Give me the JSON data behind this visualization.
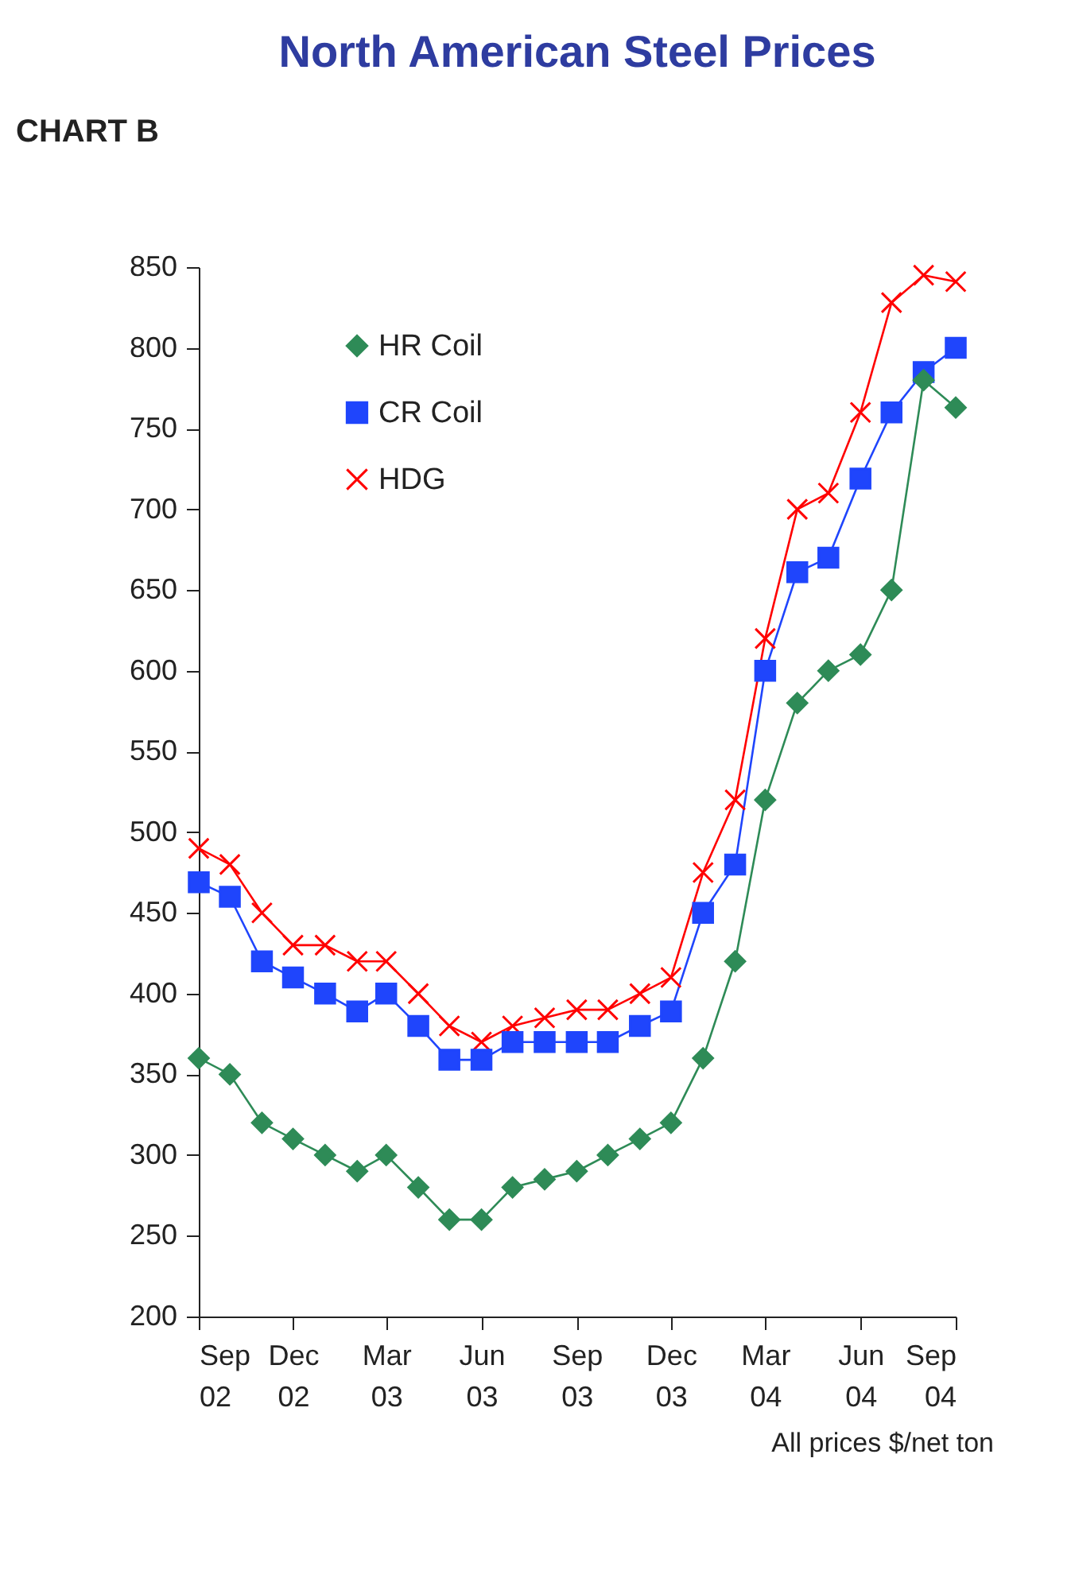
{
  "chart_data": {
    "type": "line",
    "title": "North American Steel Prices",
    "annotations": [
      "CHART B",
      "All prices $/net ton"
    ],
    "x": [
      "2002-09",
      "2002-10",
      "2002-11",
      "2002-12",
      "2003-01",
      "2003-02",
      "2003-03",
      "2003-04",
      "2003-05",
      "2003-06",
      "2003-07",
      "2003-08",
      "2003-09",
      "2003-10",
      "2003-11",
      "2003-12",
      "2004-01",
      "2004-02",
      "2004-03",
      "2004-04",
      "2004-05",
      "2004-06",
      "2004-07",
      "2004-08",
      "2004-09"
    ],
    "series": [
      {
        "name": "HR Coil",
        "color": "#2e8b57",
        "marker": "diamond",
        "values": [
          360,
          350,
          320,
          310,
          300,
          290,
          300,
          280,
          260,
          260,
          280,
          285,
          290,
          300,
          310,
          320,
          360,
          420,
          520,
          580,
          600,
          610,
          650,
          780,
          763
        ]
      },
      {
        "name": "CR Coil",
        "color": "#1f45fc",
        "marker": "square",
        "values": [
          469,
          460,
          420,
          410,
          400,
          389,
          400,
          380,
          359,
          359,
          370,
          370,
          370,
          370,
          380,
          389,
          450,
          480,
          600,
          661,
          670,
          719,
          760,
          785,
          800
        ]
      },
      {
        "name": "HDG",
        "color": "#ff0000",
        "marker": "cross",
        "values": [
          490,
          480,
          450,
          430,
          430,
          420,
          420,
          400,
          380,
          370,
          380,
          385,
          390,
          390,
          400,
          410,
          475,
          520,
          620,
          700,
          710,
          760,
          828,
          845,
          841
        ]
      }
    ],
    "xlim": [
      "2002-09",
      "2004-09"
    ],
    "xticks": [
      {
        "value": "2002-09",
        "label": "Sep 02"
      },
      {
        "value": "2002-12",
        "label": "Dec 02"
      },
      {
        "value": "2003-03",
        "label": "Mar 03"
      },
      {
        "value": "2003-06",
        "label": "Jun 03"
      },
      {
        "value": "2003-09",
        "label": "Sep 03"
      },
      {
        "value": "2003-12",
        "label": "Dec 03"
      },
      {
        "value": "2004-03",
        "label": "Mar 04"
      },
      {
        "value": "2004-06",
        "label": "Jun 04"
      },
      {
        "value": "2004-09",
        "label": "Sep 04"
      }
    ],
    "ylim": [
      200,
      850
    ],
    "yticks": [
      200,
      250,
      300,
      350,
      400,
      450,
      500,
      550,
      600,
      650,
      700,
      750,
      800,
      850
    ],
    "grid": false,
    "legend": "top left",
    "line_style": "solid"
  }
}
